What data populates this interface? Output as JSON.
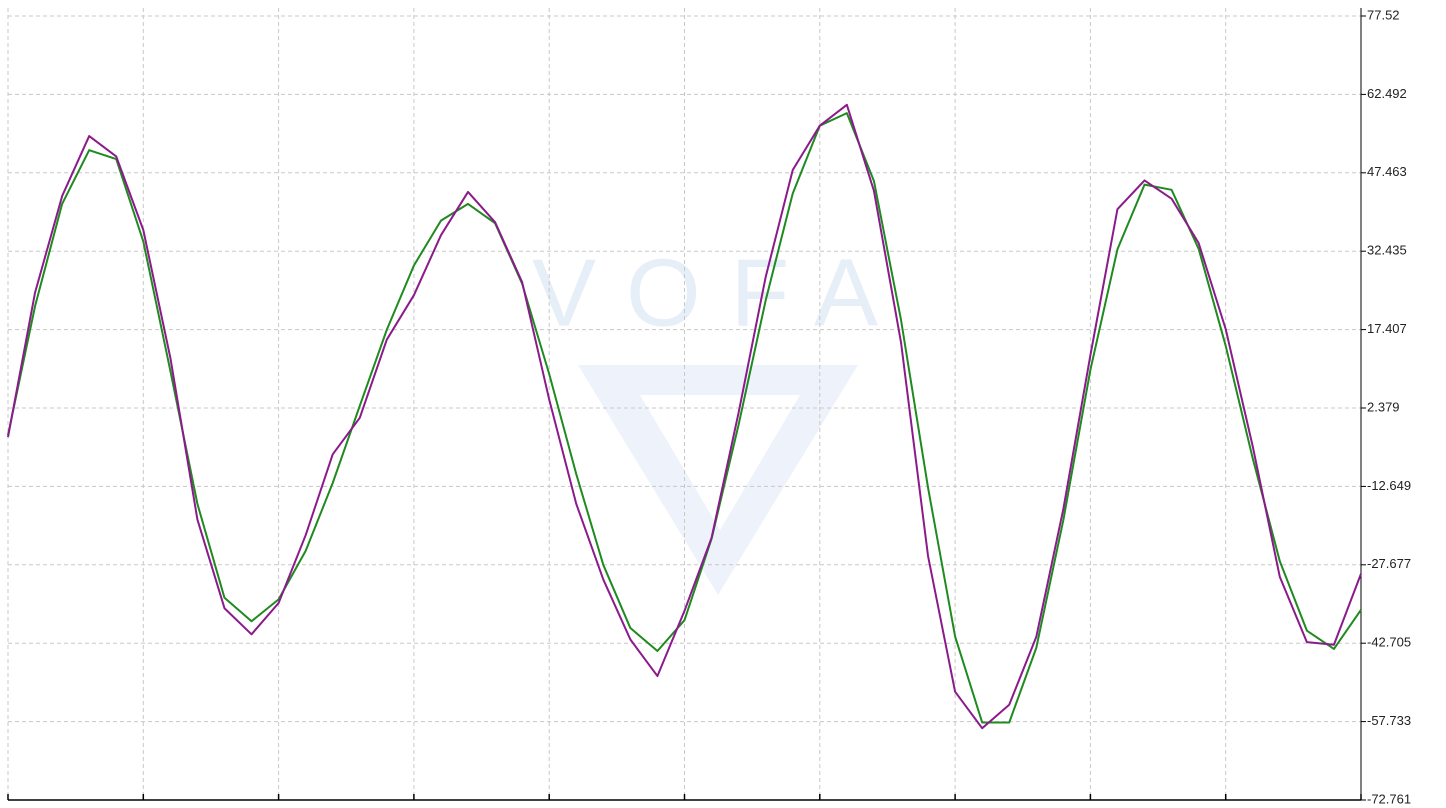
{
  "chart_data": {
    "type": "line",
    "watermark": "VOFA",
    "series": [
      {
        "name": null,
        "color": "#1f8a1f",
        "values": [
          -2.8,
          21.9,
          41.5,
          51.8,
          50.1,
          34.3,
          9.5,
          -16.0,
          -34.0,
          -38.5,
          -34.3,
          -25.0,
          -12.0,
          2.8,
          17.4,
          29.7,
          38.3,
          41.5,
          37.8,
          26.2,
          8.9,
          -10.3,
          -27.7,
          -39.8,
          -44.2,
          -38.3,
          -22.7,
          -0.8,
          23.0,
          43.5,
          56.5,
          58.9,
          45.9,
          19.3,
          -12.9,
          -41.4,
          -57.9,
          -57.9,
          -43.6,
          -19.1,
          9.7,
          32.8,
          45.2,
          44.2,
          32.9,
          14.3,
          -7.3,
          -27.0,
          -40.3,
          -43.8,
          -36.3
        ]
      },
      {
        "name": null,
        "color": "#8b1a8b",
        "values": [
          -3.2,
          24.5,
          43.0,
          54.5,
          50.6,
          36.5,
          12.0,
          -19.0,
          -36.0,
          -41.0,
          -35.0,
          -22.0,
          -6.5,
          0.5,
          15.5,
          24.0,
          35.5,
          43.8,
          38.0,
          26.5,
          4.0,
          -16.0,
          -30.5,
          -42.0,
          -49.0,
          -36.5,
          -22.5,
          1.5,
          27.5,
          48.0,
          56.5,
          60.5,
          44.0,
          15.0,
          -26.0,
          -52.0,
          -59.0,
          -54.5,
          -41.5,
          -17.0,
          12.5,
          40.5,
          46.0,
          42.5,
          34.0,
          17.5,
          -5.0,
          -30.0,
          -42.5,
          -43.0,
          -29.4
        ]
      }
    ],
    "ylim": [
      -72.761,
      77.52
    ],
    "yticks": [
      77.52,
      62.492,
      47.463,
      32.435,
      17.407,
      2.379,
      -12.649,
      -27.677,
      -42.705,
      -57.733,
      -72.761
    ],
    "grid": true
  }
}
